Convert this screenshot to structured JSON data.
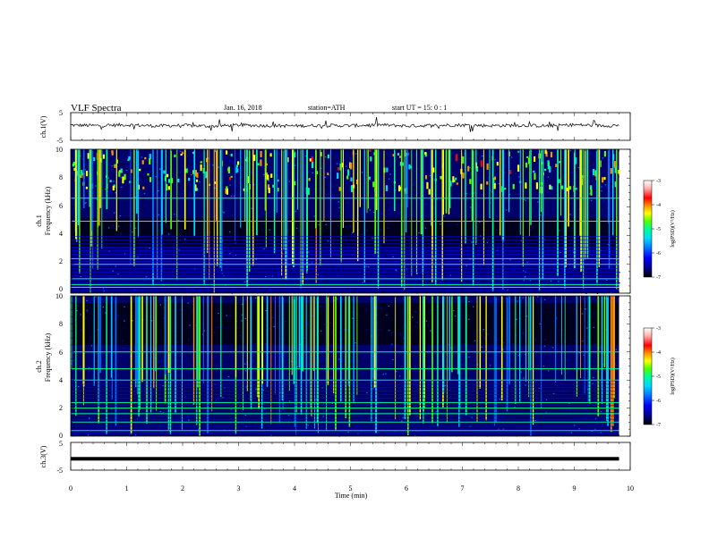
{
  "header": {
    "title": "VLF  Spectra",
    "date": "Jan. 16, 2018",
    "station": "station=ATH",
    "start": "start  UT  =   15: 0  : 1"
  },
  "colors": {
    "axis": "#000000",
    "colormap": [
      "#000000",
      "#00007a",
      "#0000ff",
      "#0070ff",
      "#00d8ff",
      "#00ff90",
      "#50ff00",
      "#ffff00",
      "#ff9000",
      "#ff0000",
      "#ffb0b0",
      "#ffffff"
    ]
  },
  "chart_data": [
    {
      "type": "line",
      "panel": "ch1",
      "ylabel": "ch.1(V)",
      "ylim": [
        -5,
        5
      ],
      "yticks": [
        "5",
        "-5"
      ],
      "x": [
        0,
        0.5,
        1,
        1.5,
        2,
        2.5,
        3,
        3.5,
        4,
        4.5,
        5,
        5.5,
        6,
        6.5,
        7,
        7.5,
        8,
        8.5,
        9,
        9.5,
        9.8
      ],
      "values": [
        0.5,
        0.3,
        0.6,
        0.2,
        0.4,
        0.1,
        0.5,
        0.3,
        0.2,
        0.4,
        0.3,
        0.6,
        0.2,
        0.4,
        0.5,
        0.3,
        0.4,
        0.2,
        0.6,
        0.3,
        0.4
      ],
      "grid": false
    },
    {
      "type": "heatmap",
      "panel": "ch1",
      "ylabel": "Frequency (kHz)",
      "channel_label": "ch.1",
      "ylim": [
        0,
        10
      ],
      "yticks": [
        "0",
        "2",
        "4",
        "6",
        "8",
        "10"
      ],
      "xlim": [
        0,
        9.8
      ],
      "colorbar": {
        "label": "log(PSD)(V²/Hz)",
        "range": [
          -7,
          -3
        ],
        "ticks": [
          "-3",
          "-4",
          "-5",
          "-6",
          "-7"
        ]
      },
      "strong_lines_khz": [
        0.4,
        0.6,
        1.0,
        2.0,
        2.4,
        5.0,
        6.6
      ]
    },
    {
      "type": "heatmap",
      "panel": "ch2",
      "ylabel": "Frequency (kHz)",
      "channel_label": "ch.2",
      "ylim": [
        0,
        10
      ],
      "yticks": [
        "0",
        "2",
        "4",
        "6",
        "8",
        "10"
      ],
      "xlim": [
        0,
        9.8
      ],
      "colorbar": {
        "label": "log(PSD)(V²/Hz)",
        "range": [
          -7,
          -3
        ],
        "ticks": [
          "-3",
          "-4",
          "-5",
          "-6",
          "-7"
        ]
      },
      "strong_lines_khz": [
        0.4,
        1.0,
        1.6,
        2.0,
        2.4,
        4.0,
        4.8,
        6.0
      ]
    },
    {
      "type": "line",
      "panel": "ch3",
      "ylabel": "ch.3(V)",
      "ylim": [
        -5,
        5
      ],
      "yticks": [
        "5",
        "-5"
      ],
      "x": [
        0,
        9.8
      ],
      "values": [
        -0.9,
        -0.9
      ],
      "xlabel": "Time  (min)",
      "xlim": [
        0,
        10
      ],
      "xticks": [
        "0",
        "1",
        "2",
        "3",
        "4",
        "5",
        "6",
        "7",
        "8",
        "9",
        "10"
      ]
    }
  ]
}
